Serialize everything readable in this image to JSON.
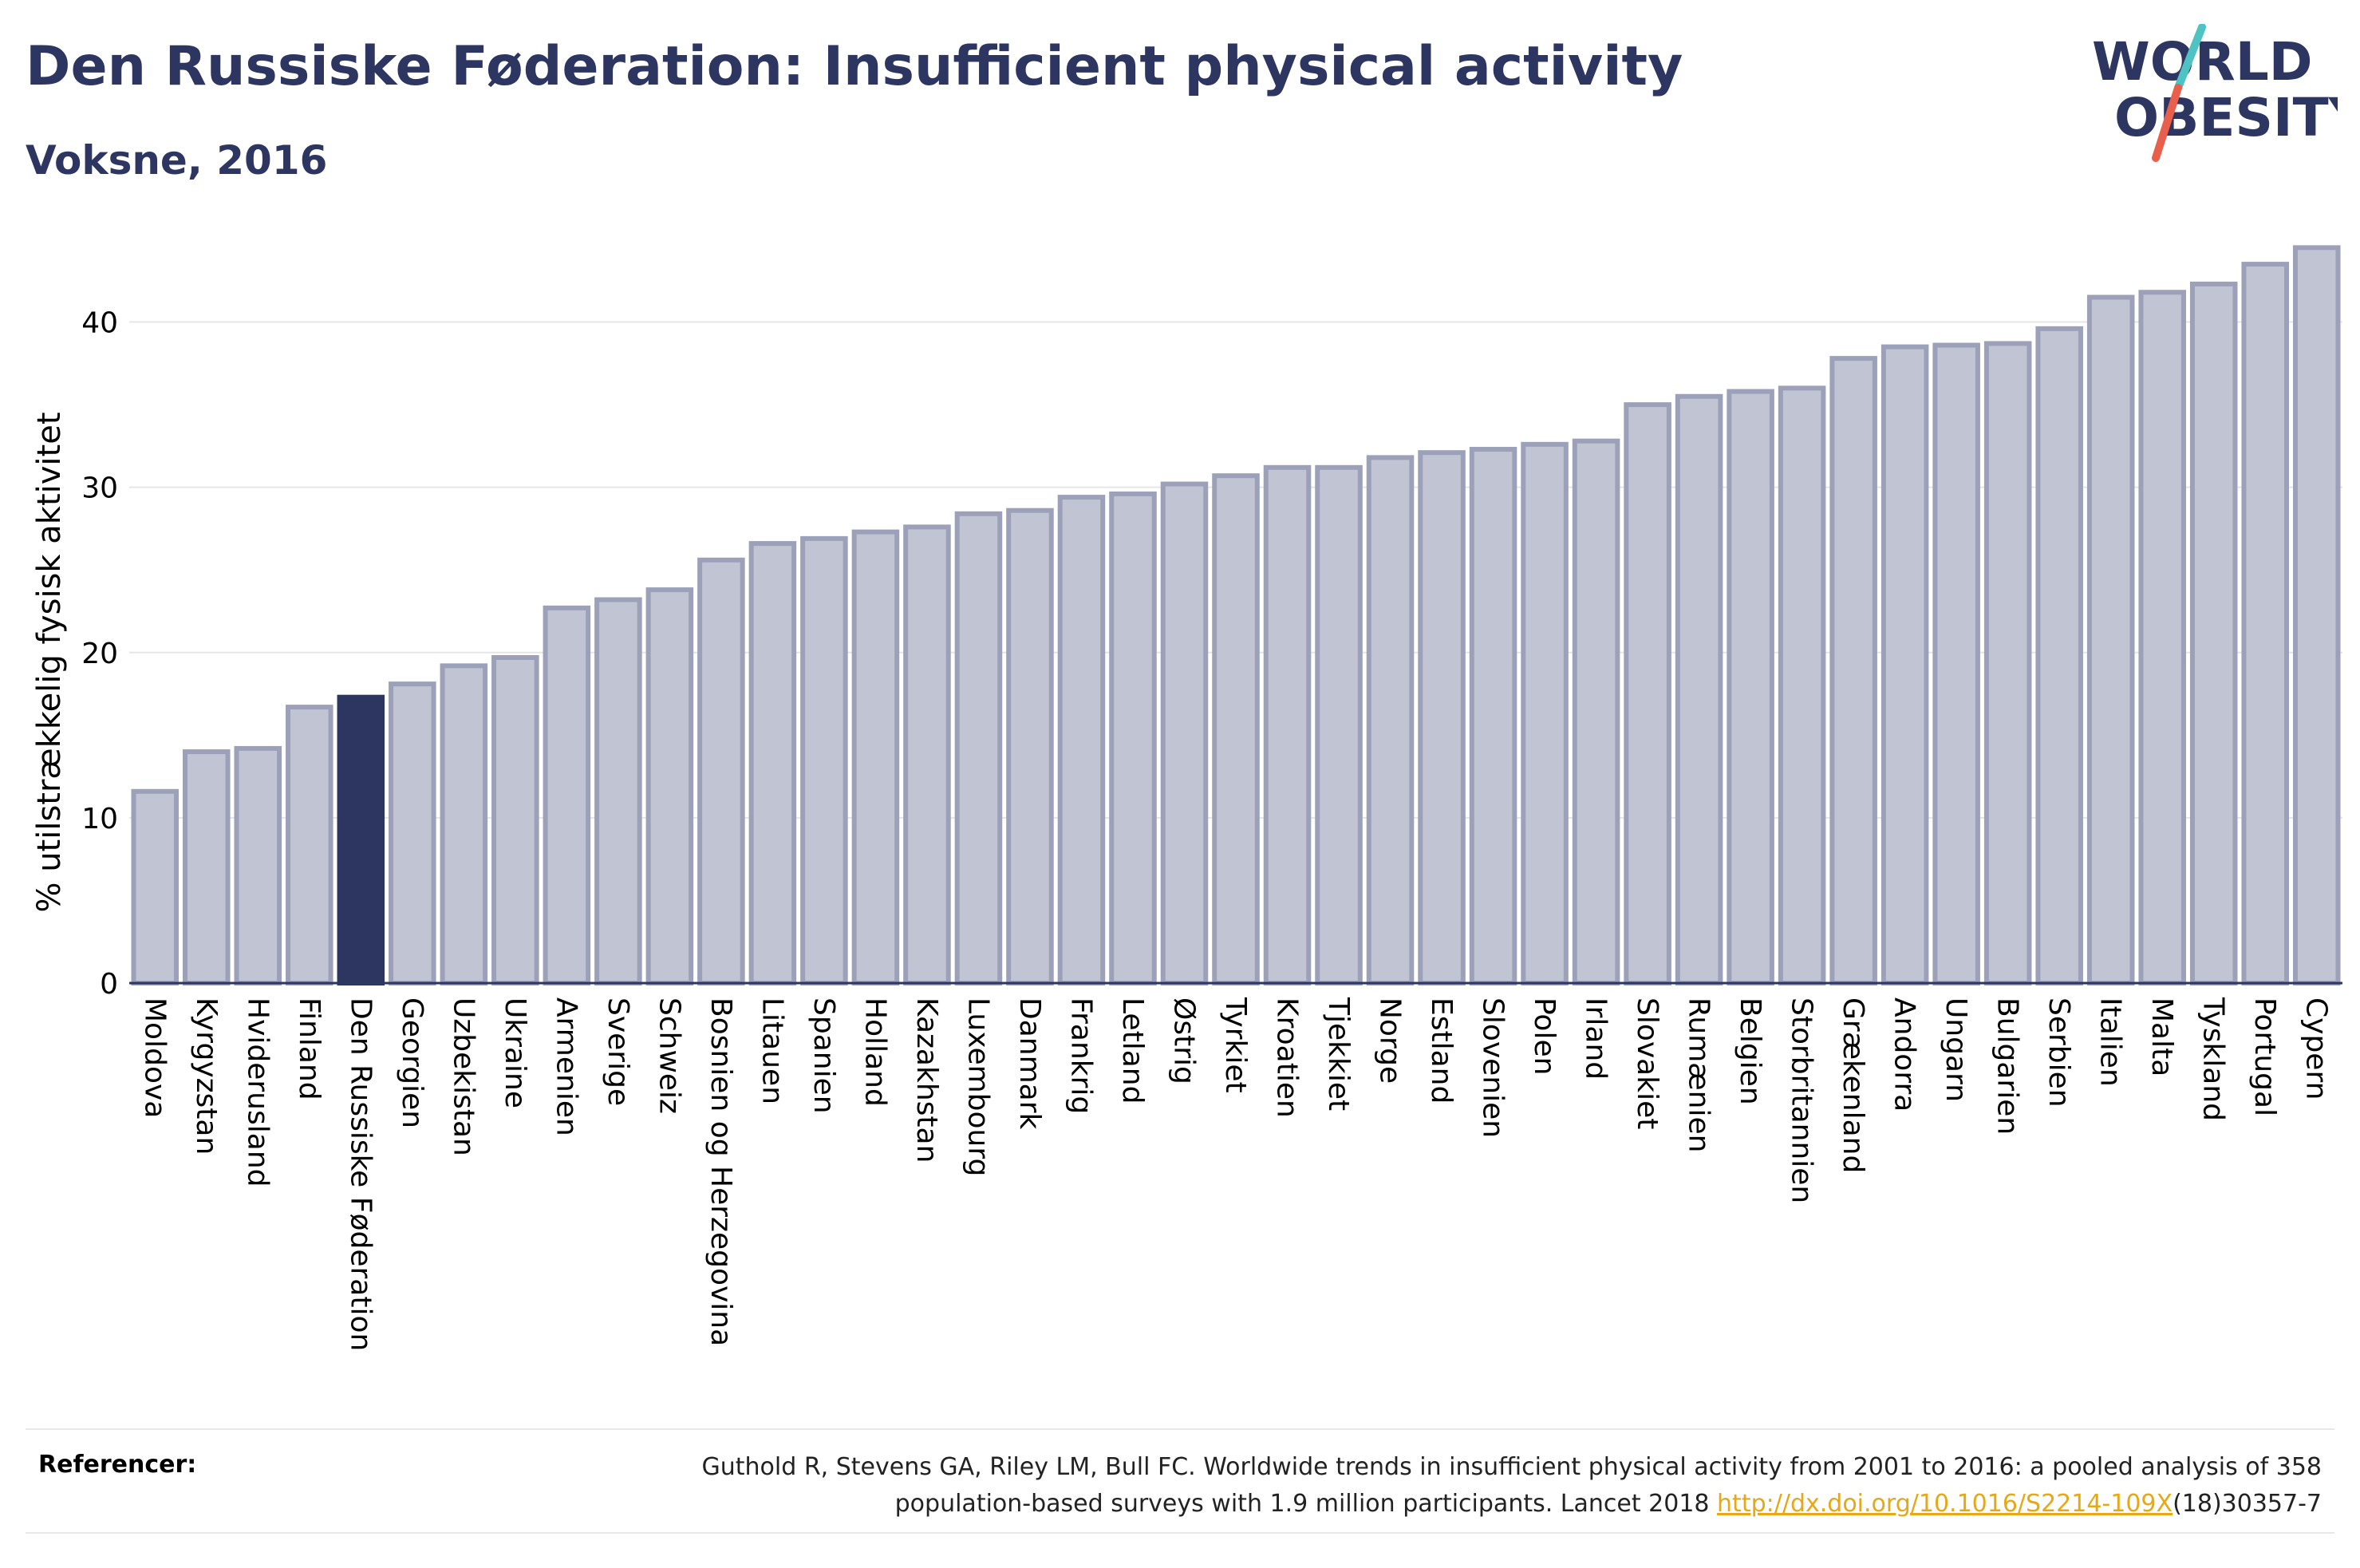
{
  "header": {
    "title": "Den Russiske Føderation: Insufficient physical activity",
    "subtitle": "Voksne, 2016"
  },
  "logo": {
    "line1": "WORLD",
    "line2": "OBESITY",
    "accent_colors": [
      "#4fc3c3",
      "#e8604c"
    ]
  },
  "colors": {
    "highlight_bar": "#2d3561",
    "default_bar_fill": "#c0c4d3",
    "default_bar_stroke": "#9ca1b9",
    "title": "#2d3561"
  },
  "chart_data": {
    "type": "bar",
    "title": "Den Russiske Føderation: Insufficient physical activity",
    "subtitle": "Voksne, 2016",
    "xlabel": "",
    "ylabel": "% utilstrækkelig fysisk aktivitet",
    "ylim": [
      0,
      45
    ],
    "yticks": [
      0,
      10,
      20,
      30,
      40
    ],
    "grid": true,
    "highlight": "Den Russiske Føderation",
    "categories": [
      "Moldova",
      "Kyrgyzstan",
      "Hviderusland",
      "Finland",
      "Den Russiske Føderation",
      "Georgien",
      "Uzbekistan",
      "Ukraine",
      "Armenien",
      "Sverige",
      "Schweiz",
      "Bosnien og Herzegovina",
      "Litauen",
      "Spanien",
      "Holland",
      "Kazakhstan",
      "Luxembourg",
      "Danmark",
      "Frankrig",
      "Letland",
      "Østrig",
      "Tyrkiet",
      "Kroatien",
      "Tjekkiet",
      "Norge",
      "Estland",
      "Slovenien",
      "Polen",
      "Irland",
      "Slovakiet",
      "Rumænien",
      "Belgien",
      "Storbritannien",
      "Grækenland",
      "Andorra",
      "Ungarn",
      "Bulgarien",
      "Serbien",
      "Italien",
      "Malta",
      "Tyskland",
      "Portugal",
      "Cypern"
    ],
    "values": [
      11.6,
      14.0,
      14.2,
      16.7,
      17.3,
      18.1,
      19.2,
      19.7,
      22.7,
      23.2,
      23.8,
      25.6,
      26.6,
      26.9,
      27.3,
      27.6,
      28.4,
      28.6,
      29.4,
      29.6,
      30.2,
      30.7,
      31.2,
      31.2,
      31.8,
      32.1,
      32.3,
      32.6,
      32.8,
      35.0,
      35.5,
      35.8,
      36.0,
      37.8,
      38.5,
      38.6,
      38.7,
      39.6,
      41.5,
      41.8,
      42.3,
      43.5,
      44.5
    ]
  },
  "references": {
    "label": "Referencer:",
    "text_line1": "Guthold R, Stevens GA, Riley LM, Bull FC. Worldwide trends in insufficient physical activity from 2001 to 2016: a pooled analysis of 358",
    "text_line2_before": "population-based surveys with 1.9 million participants. Lancet 2018 ",
    "link_text": "http://dx.doi.org/10.1016/S2214-109X",
    "text_line2_after": "(18)30357-7"
  }
}
